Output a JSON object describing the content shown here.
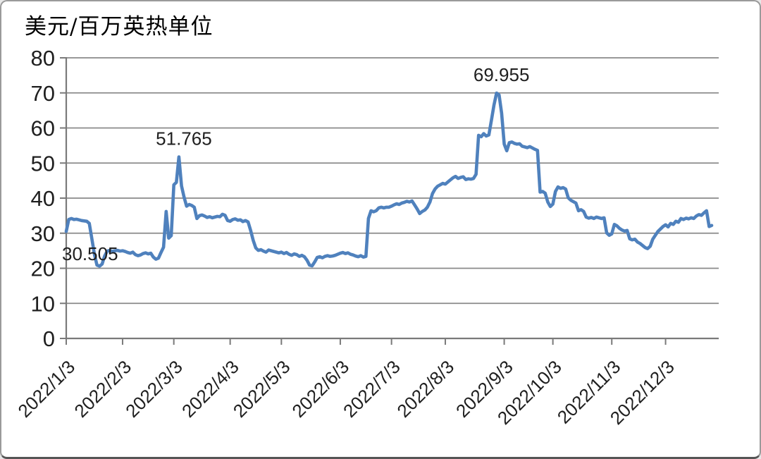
{
  "title": "美元/百万英热单位",
  "colors": {
    "line": "#4F81BD",
    "grid": "#8a8a8a",
    "axis": "#7a7a7a",
    "text": "#1f1f1f",
    "background": "#ffffff",
    "frame": "#9a9a9a"
  },
  "chart_data": {
    "type": "line",
    "title": "美元/百万英热单位",
    "ylabel": "美元/百万英热单位",
    "xlabel": "",
    "year": "2022",
    "ylim": [
      0,
      80
    ],
    "y_ticks": [
      0,
      10,
      20,
      30,
      40,
      50,
      60,
      70,
      80
    ],
    "grid": true,
    "legend_position": "none",
    "x_tick_labels": [
      "2022/1/3",
      "2022/2/3",
      "2022/3/3",
      "2022/4/3",
      "2022/5/3",
      "2022/6/3",
      "2022/7/3",
      "2022/8/3",
      "2022/9/3",
      "2022/10/3",
      "2022/11/3",
      "2022/12/3"
    ],
    "month_tick_indices": [
      0,
      22,
      42,
      64,
      84,
      107,
      127,
      148,
      171,
      190,
      213,
      234
    ],
    "annotations": [
      {
        "text": "30.505",
        "point_index": 0,
        "placement": "below-right"
      },
      {
        "text": "51.765",
        "point_index": 44,
        "placement": "above"
      },
      {
        "text": "69.955",
        "point_index": 168,
        "placement": "above"
      }
    ],
    "dates": [
      "1/3",
      "1/4",
      "1/5",
      "1/6",
      "1/7",
      "1/10",
      "1/11",
      "1/12",
      "1/13",
      "1/14",
      "1/18",
      "1/19",
      "1/20",
      "1/21",
      "1/24",
      "1/25",
      "1/26",
      "1/27",
      "1/28",
      "1/31",
      "2/1",
      "2/2",
      "2/3",
      "2/4",
      "2/7",
      "2/8",
      "2/9",
      "2/10",
      "2/11",
      "2/14",
      "2/15",
      "2/16",
      "2/17",
      "2/18",
      "2/21",
      "2/22",
      "2/23",
      "2/24",
      "2/25",
      "2/28",
      "3/1",
      "3/2",
      "3/3",
      "3/4",
      "3/7",
      "3/8",
      "3/9",
      "3/10",
      "3/11",
      "3/14",
      "3/15",
      "3/16",
      "3/17",
      "3/18",
      "3/21",
      "3/22",
      "3/23",
      "3/24",
      "3/25",
      "3/28",
      "3/29",
      "3/30",
      "3/31",
      "4/1",
      "4/4",
      "4/5",
      "4/6",
      "4/7",
      "4/8",
      "4/11",
      "4/12",
      "4/13",
      "4/14",
      "4/18",
      "4/19",
      "4/20",
      "4/21",
      "4/22",
      "4/25",
      "4/26",
      "4/27",
      "4/28",
      "4/29",
      "5/2",
      "5/3",
      "5/4",
      "5/5",
      "5/6",
      "5/9",
      "5/10",
      "5/11",
      "5/12",
      "5/13",
      "5/16",
      "5/17",
      "5/18",
      "5/19",
      "5/20",
      "5/23",
      "5/24",
      "5/25",
      "5/26",
      "5/27",
      "5/30",
      "5/31",
      "6/1",
      "6/2",
      "6/3",
      "6/6",
      "6/7",
      "6/8",
      "6/9",
      "6/10",
      "6/13",
      "6/14",
      "6/15",
      "6/16",
      "6/17",
      "6/21",
      "6/22",
      "6/23",
      "6/24",
      "6/27",
      "6/28",
      "6/29",
      "6/30",
      "7/1",
      "7/5",
      "7/6",
      "7/7",
      "7/8",
      "7/11",
      "7/12",
      "7/13",
      "7/14",
      "7/15",
      "7/18",
      "7/19",
      "7/20",
      "7/21",
      "7/22",
      "7/25",
      "7/26",
      "7/27",
      "7/28",
      "7/29",
      "8/1",
      "8/2",
      "8/3",
      "8/4",
      "8/5",
      "8/8",
      "8/9",
      "8/10",
      "8/11",
      "8/12",
      "8/15",
      "8/16",
      "8/17",
      "8/18",
      "8/19",
      "8/22",
      "8/23",
      "8/24",
      "8/25",
      "8/26",
      "8/29",
      "8/30",
      "8/31",
      "9/1",
      "9/2",
      "9/6",
      "9/7",
      "9/8",
      "9/9",
      "9/12",
      "9/13",
      "9/14",
      "9/15",
      "9/16",
      "9/19",
      "9/20",
      "9/21",
      "9/22",
      "9/23",
      "9/26",
      "9/27",
      "9/28",
      "9/29",
      "9/30",
      "10/3",
      "10/4",
      "10/5",
      "10/6",
      "10/7",
      "10/10",
      "10/11",
      "10/12",
      "10/13",
      "10/14",
      "10/17",
      "10/18",
      "10/19",
      "10/20",
      "10/21",
      "10/24",
      "10/25",
      "10/26",
      "10/27",
      "10/28",
      "10/31",
      "11/1",
      "11/2",
      "11/3",
      "11/4",
      "11/7",
      "11/8",
      "11/9",
      "11/10",
      "11/11",
      "11/14",
      "11/15",
      "11/16",
      "11/17",
      "11/18",
      "11/21",
      "11/22",
      "11/23",
      "11/25",
      "11/28",
      "11/29",
      "11/30",
      "12/1",
      "12/2",
      "12/5",
      "12/6",
      "12/7",
      "12/8",
      "12/9",
      "12/12",
      "12/13",
      "12/14",
      "12/15",
      "12/16",
      "12/19",
      "12/20",
      "12/21",
      "12/22",
      "12/23",
      "12/27",
      "12/28",
      "12/29",
      "12/30"
    ],
    "values": [
      30.505,
      33.9,
      34.2,
      33.9,
      34.0,
      33.8,
      33.6,
      33.5,
      33.4,
      32.8,
      28.5,
      24.0,
      20.9,
      20.6,
      21.2,
      23.5,
      24.9,
      25.1,
      24.8,
      25.0,
      25.1,
      24.9,
      25.0,
      24.8,
      24.5,
      24.3,
      24.6,
      23.9,
      23.6,
      23.8,
      24.2,
      24.4,
      24.1,
      24.3,
      23.2,
      22.6,
      22.9,
      24.5,
      26.0,
      36.2,
      28.6,
      29.3,
      43.8,
      44.5,
      51.765,
      43.5,
      40.3,
      37.7,
      38.2,
      37.9,
      37.4,
      34.2,
      35.0,
      35.2,
      34.9,
      34.5,
      34.7,
      34.4,
      34.6,
      34.8,
      34.7,
      35.4,
      35.1,
      33.6,
      33.4,
      33.9,
      34.1,
      33.7,
      33.8,
      33.3,
      33.6,
      33.2,
      30.8,
      28.0,
      25.8,
      25.1,
      25.3,
      24.9,
      24.6,
      25.2,
      25.0,
      24.8,
      24.6,
      24.4,
      24.6,
      24.2,
      24.5,
      24.0,
      23.7,
      24.1,
      23.9,
      23.4,
      23.7,
      23.3,
      22.3,
      20.9,
      20.7,
      21.8,
      23.1,
      23.3,
      23.0,
      23.4,
      23.6,
      23.4,
      23.5,
      23.7,
      24.0,
      24.3,
      24.5,
      24.2,
      24.4,
      24.0,
      23.8,
      23.5,
      23.3,
      23.6,
      23.2,
      23.4,
      34.2,
      36.4,
      36.1,
      36.4,
      37.2,
      37.4,
      37.2,
      37.4,
      37.4,
      37.7,
      38.1,
      38.4,
      38.2,
      38.6,
      38.8,
      39.1,
      38.9,
      39.2,
      38.1,
      36.9,
      35.6,
      36.2,
      36.6,
      37.4,
      38.9,
      41.3,
      42.6,
      43.4,
      43.8,
      44.2,
      44.0,
      44.6,
      45.2,
      45.8,
      46.2,
      45.6,
      45.9,
      46.1,
      45.3,
      45.5,
      45.4,
      45.6,
      46.8,
      57.9,
      57.5,
      58.4,
      57.7,
      58.0,
      62.2,
      66.5,
      69.955,
      69.4,
      64.2,
      55.4,
      53.5,
      55.8,
      56.0,
      55.6,
      55.4,
      55.5,
      54.8,
      54.6,
      54.4,
      54.7,
      54.3,
      53.9,
      53.6,
      41.7,
      41.9,
      41.4,
      38.9,
      37.6,
      38.3,
      41.9,
      43.2,
      42.8,
      43.0,
      42.6,
      40.1,
      39.4,
      39.0,
      38.6,
      36.4,
      36.7,
      36.2,
      34.6,
      34.3,
      34.5,
      34.2,
      34.6,
      34.4,
      34.2,
      34.4,
      30.1,
      29.4,
      29.8,
      32.5,
      32.1,
      31.4,
      30.9,
      30.6,
      30.8,
      28.4,
      28.1,
      28.3,
      27.5,
      27.1,
      26.5,
      25.9,
      25.6,
      26.3,
      28.3,
      29.4,
      30.5,
      31.2,
      31.9,
      32.4,
      31.8,
      32.8,
      32.5,
      33.4,
      33.1,
      34.2,
      33.9,
      34.3,
      34.1,
      34.4,
      34.2,
      34.9,
      35.3,
      35.1,
      35.8,
      36.4,
      31.9,
      32.2
    ]
  }
}
